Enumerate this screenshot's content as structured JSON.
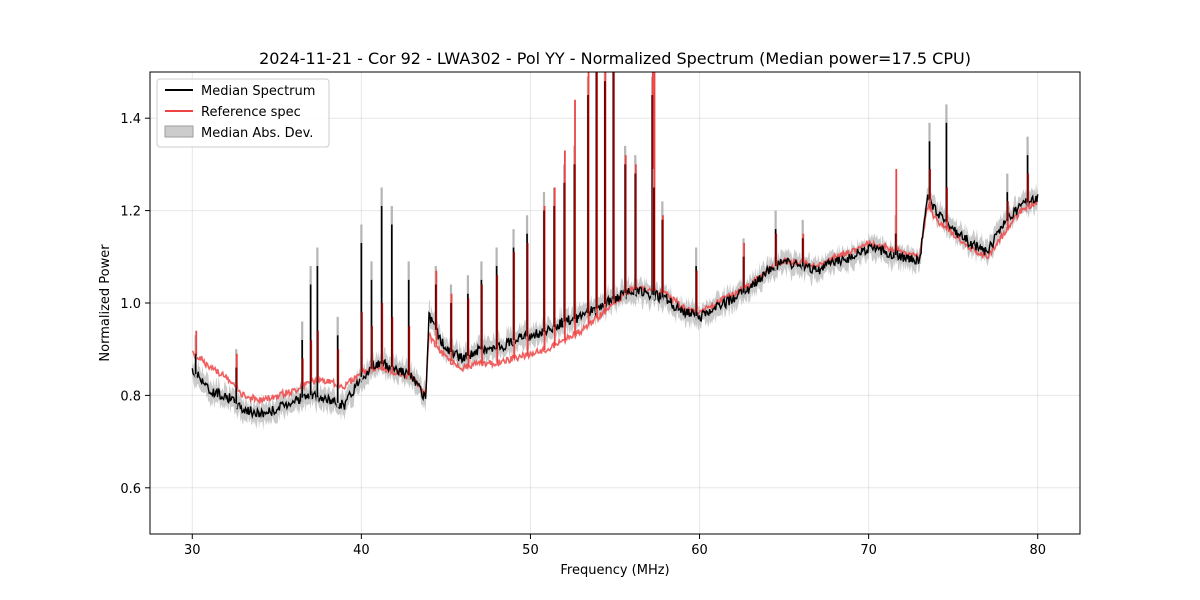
{
  "chart_data": {
    "type": "line",
    "title": "2024-11-21 - Cor 92 - LWA302 - Pol YY - Normalized Spectrum (Median power=17.5 CPU)",
    "xlabel": "Frequency (MHz)",
    "ylabel": "Normalized Power",
    "xlim": [
      27.5,
      82.5
    ],
    "ylim": [
      0.5,
      1.5
    ],
    "xticks": [
      30,
      40,
      50,
      60,
      70,
      80
    ],
    "yticks": [
      0.6,
      0.8,
      1.0,
      1.2,
      1.4
    ],
    "xtick_labels": [
      "30",
      "40",
      "50",
      "60",
      "70",
      "80"
    ],
    "ytick_labels": [
      "0.6",
      "0.8",
      "1.0",
      "1.2",
      "1.4"
    ],
    "grid": true,
    "legend_position": "top-left",
    "legend": [
      "Median Spectrum",
      "Reference spec",
      "Median Abs. Dev."
    ],
    "colors": {
      "median": "#000000",
      "reference": "#ee4444",
      "mad": "#bdbdbd",
      "overlap": "#8b0000"
    },
    "series": [
      {
        "name": "Median Spectrum",
        "x": [
          30,
          30.5,
          31,
          32,
          33,
          34,
          35,
          36,
          37,
          38,
          39,
          40,
          41,
          42,
          43,
          43.8,
          44,
          45,
          46,
          47,
          48,
          49,
          50,
          51,
          52,
          53,
          54,
          55,
          56,
          57,
          58,
          59,
          60,
          61,
          62,
          63,
          64,
          65,
          66,
          67,
          68,
          69,
          70,
          71,
          72,
          73,
          73.5,
          74,
          75,
          76,
          77,
          78,
          79,
          80
        ],
        "values": [
          0.85,
          0.84,
          0.81,
          0.8,
          0.77,
          0.76,
          0.77,
          0.79,
          0.8,
          0.79,
          0.78,
          0.84,
          0.87,
          0.86,
          0.84,
          0.79,
          0.97,
          0.9,
          0.88,
          0.9,
          0.9,
          0.92,
          0.93,
          0.94,
          0.96,
          0.97,
          0.99,
          1.01,
          1.03,
          1.02,
          1.01,
          0.98,
          0.97,
          0.99,
          1.01,
          1.03,
          1.07,
          1.09,
          1.08,
          1.07,
          1.09,
          1.1,
          1.12,
          1.11,
          1.1,
          1.09,
          1.23,
          1.2,
          1.16,
          1.13,
          1.11,
          1.17,
          1.21,
          1.23
        ]
      },
      {
        "name": "Reference spec",
        "x": [
          30,
          30.5,
          31,
          32,
          33,
          34,
          35,
          36,
          37,
          38,
          39,
          40,
          41,
          42,
          43,
          43.8,
          44,
          45,
          46,
          47,
          48,
          49,
          50,
          51,
          52,
          53,
          54,
          55,
          56,
          57,
          58,
          59,
          60,
          61,
          62,
          63,
          64,
          65,
          66,
          67,
          68,
          69,
          70,
          71,
          72,
          73,
          73.5,
          74,
          75,
          76,
          77,
          78,
          79,
          80
        ],
        "values": [
          0.89,
          0.88,
          0.86,
          0.84,
          0.8,
          0.79,
          0.8,
          0.81,
          0.83,
          0.83,
          0.82,
          0.85,
          0.86,
          0.85,
          0.84,
          0.8,
          0.93,
          0.88,
          0.86,
          0.87,
          0.87,
          0.88,
          0.89,
          0.9,
          0.92,
          0.94,
          0.97,
          1.0,
          1.03,
          1.03,
          1.02,
          0.99,
          0.98,
          1.0,
          1.02,
          1.04,
          1.07,
          1.09,
          1.09,
          1.08,
          1.1,
          1.11,
          1.13,
          1.12,
          1.11,
          1.1,
          1.21,
          1.18,
          1.15,
          1.12,
          1.1,
          1.15,
          1.2,
          1.22
        ]
      }
    ],
    "mad_halfwidth": 0.02,
    "spikes": [
      {
        "x": 30.2,
        "median": 0.89,
        "reference": 0.94
      },
      {
        "x": 32.6,
        "median": 0.86,
        "reference": 0.89
      },
      {
        "x": 36.5,
        "median": 0.92,
        "reference": 0.88
      },
      {
        "x": 37.0,
        "median": 1.04,
        "reference": 0.92
      },
      {
        "x": 37.4,
        "median": 1.08,
        "reference": 0.94
      },
      {
        "x": 38.6,
        "median": 0.93,
        "reference": 0.9
      },
      {
        "x": 40.0,
        "median": 1.13,
        "reference": 0.98
      },
      {
        "x": 40.6,
        "median": 1.05,
        "reference": 0.95
      },
      {
        "x": 41.2,
        "median": 1.21,
        "reference": 1.0
      },
      {
        "x": 41.8,
        "median": 1.17,
        "reference": 0.97
      },
      {
        "x": 42.8,
        "median": 1.05,
        "reference": 0.95
      },
      {
        "x": 44.4,
        "median": 1.04,
        "reference": 1.07
      },
      {
        "x": 45.3,
        "median": 1.0,
        "reference": 1.02
      },
      {
        "x": 46.3,
        "median": 1.02,
        "reference": 1.01
      },
      {
        "x": 47.1,
        "median": 1.05,
        "reference": 1.04
      },
      {
        "x": 48.0,
        "median": 1.08,
        "reference": 1.06
      },
      {
        "x": 49.0,
        "median": 1.12,
        "reference": 1.11
      },
      {
        "x": 49.8,
        "median": 1.15,
        "reference": 1.13
      },
      {
        "x": 50.8,
        "median": 1.2,
        "reference": 1.21
      },
      {
        "x": 51.4,
        "median": 1.21,
        "reference": 1.25
      },
      {
        "x": 52.0,
        "median": 1.26,
        "reference": 1.33
      },
      {
        "x": 52.6,
        "median": 1.3,
        "reference": 1.44
      },
      {
        "x": 53.4,
        "median": 1.45,
        "reference": 1.55
      },
      {
        "x": 53.9,
        "median": 1.5,
        "reference": 1.6
      },
      {
        "x": 54.4,
        "median": 1.48,
        "reference": 1.6
      },
      {
        "x": 54.9,
        "median": 1.5,
        "reference": 1.6
      },
      {
        "x": 55.6,
        "median": 1.3,
        "reference": 1.32
      },
      {
        "x": 56.2,
        "median": 1.28,
        "reference": 1.3
      },
      {
        "x": 57.2,
        "median": 1.45,
        "reference": 1.55
      },
      {
        "x": 57.3,
        "median": 1.25,
        "reference": 1.5
      },
      {
        "x": 57.8,
        "median": 1.18,
        "reference": 1.19
      },
      {
        "x": 59.8,
        "median": 1.08,
        "reference": 1.07
      },
      {
        "x": 62.6,
        "median": 1.1,
        "reference": 1.13
      },
      {
        "x": 64.5,
        "median": 1.16,
        "reference": 1.15
      },
      {
        "x": 66.1,
        "median": 1.14,
        "reference": 1.15
      },
      {
        "x": 71.6,
        "median": 1.15,
        "reference": 1.29
      },
      {
        "x": 73.6,
        "median": 1.35,
        "reference": 1.29
      },
      {
        "x": 74.6,
        "median": 1.39,
        "reference": 1.25
      },
      {
        "x": 78.2,
        "median": 1.24,
        "reference": 1.22
      },
      {
        "x": 79.4,
        "median": 1.32,
        "reference": 1.28
      }
    ]
  }
}
